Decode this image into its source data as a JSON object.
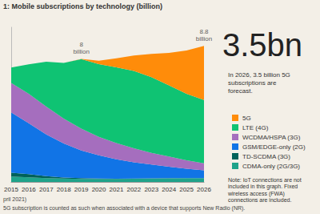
{
  "chart_data": {
    "type": "area",
    "title": "1: Mobile subscriptions by technology (billion)",
    "headline": "3.5bn",
    "subtitle": "In 2026, 3.5 billion 5G subscriptions are forecast.",
    "note": "Note: IoT connections are not included in this graph. Fixed wireless access (FWA) connections are included.",
    "source": "pril 2021)",
    "footnote": "5G subscription is counted as such when associated with a device that supports New Radio (NR).",
    "categories": [
      "2015",
      "2016",
      "2017",
      "2018",
      "2019",
      "2020",
      "2021",
      "2022",
      "2023",
      "2024",
      "2025",
      "2026"
    ],
    "series": [
      {
        "name": "5G",
        "color": "#ff8c0a",
        "values": [
          0,
          0,
          0,
          0,
          0.01,
          0.22,
          0.58,
          1.0,
          1.5,
          2.1,
          2.8,
          3.5
        ]
      },
      {
        "name": "LTE (4G)",
        "color": "#0fc373",
        "values": [
          1.0,
          1.9,
          2.9,
          3.6,
          4.5,
          4.7,
          4.9,
          5.0,
          4.9,
          4.6,
          4.3,
          4.1
        ]
      },
      {
        "name": "WCDMA/HSPA (3G)",
        "color": "#a56ebe",
        "values": [
          1.9,
          1.9,
          1.8,
          1.6,
          1.4,
          1.2,
          1.05,
          0.9,
          0.75,
          0.65,
          0.55,
          0.45
        ]
      },
      {
        "name": "GSM/EDGE-only (2G)",
        "color": "#1174e6",
        "values": [
          3.9,
          3.3,
          2.7,
          2.2,
          1.8,
          1.5,
          1.25,
          1.05,
          0.9,
          0.75,
          0.6,
          0.5
        ]
      },
      {
        "name": "TD-SCDMA (3G)",
        "color": "#00625a",
        "values": [
          0.25,
          0.2,
          0.12,
          0.07,
          0.04,
          0.02,
          0.01,
          0.01,
          0.01,
          0.01,
          0.01,
          0.01
        ]
      },
      {
        "name": "CDMA-only (2G/3G)",
        "color": "#1fa38a",
        "values": [
          0.35,
          0.3,
          0.25,
          0.22,
          0.2,
          0.2,
          0.2,
          0.21,
          0.22,
          0.23,
          0.24,
          0.24
        ]
      }
    ],
    "annotations": [
      {
        "x": "2019",
        "y": 8.0,
        "text": "8 billion"
      },
      {
        "x": "2026",
        "y": 8.8,
        "text": "8.8 billion"
      }
    ],
    "ylim": [
      0,
      10
    ],
    "stacked": true,
    "legend": "right",
    "grid": false,
    "tick_labels": "x"
  }
}
